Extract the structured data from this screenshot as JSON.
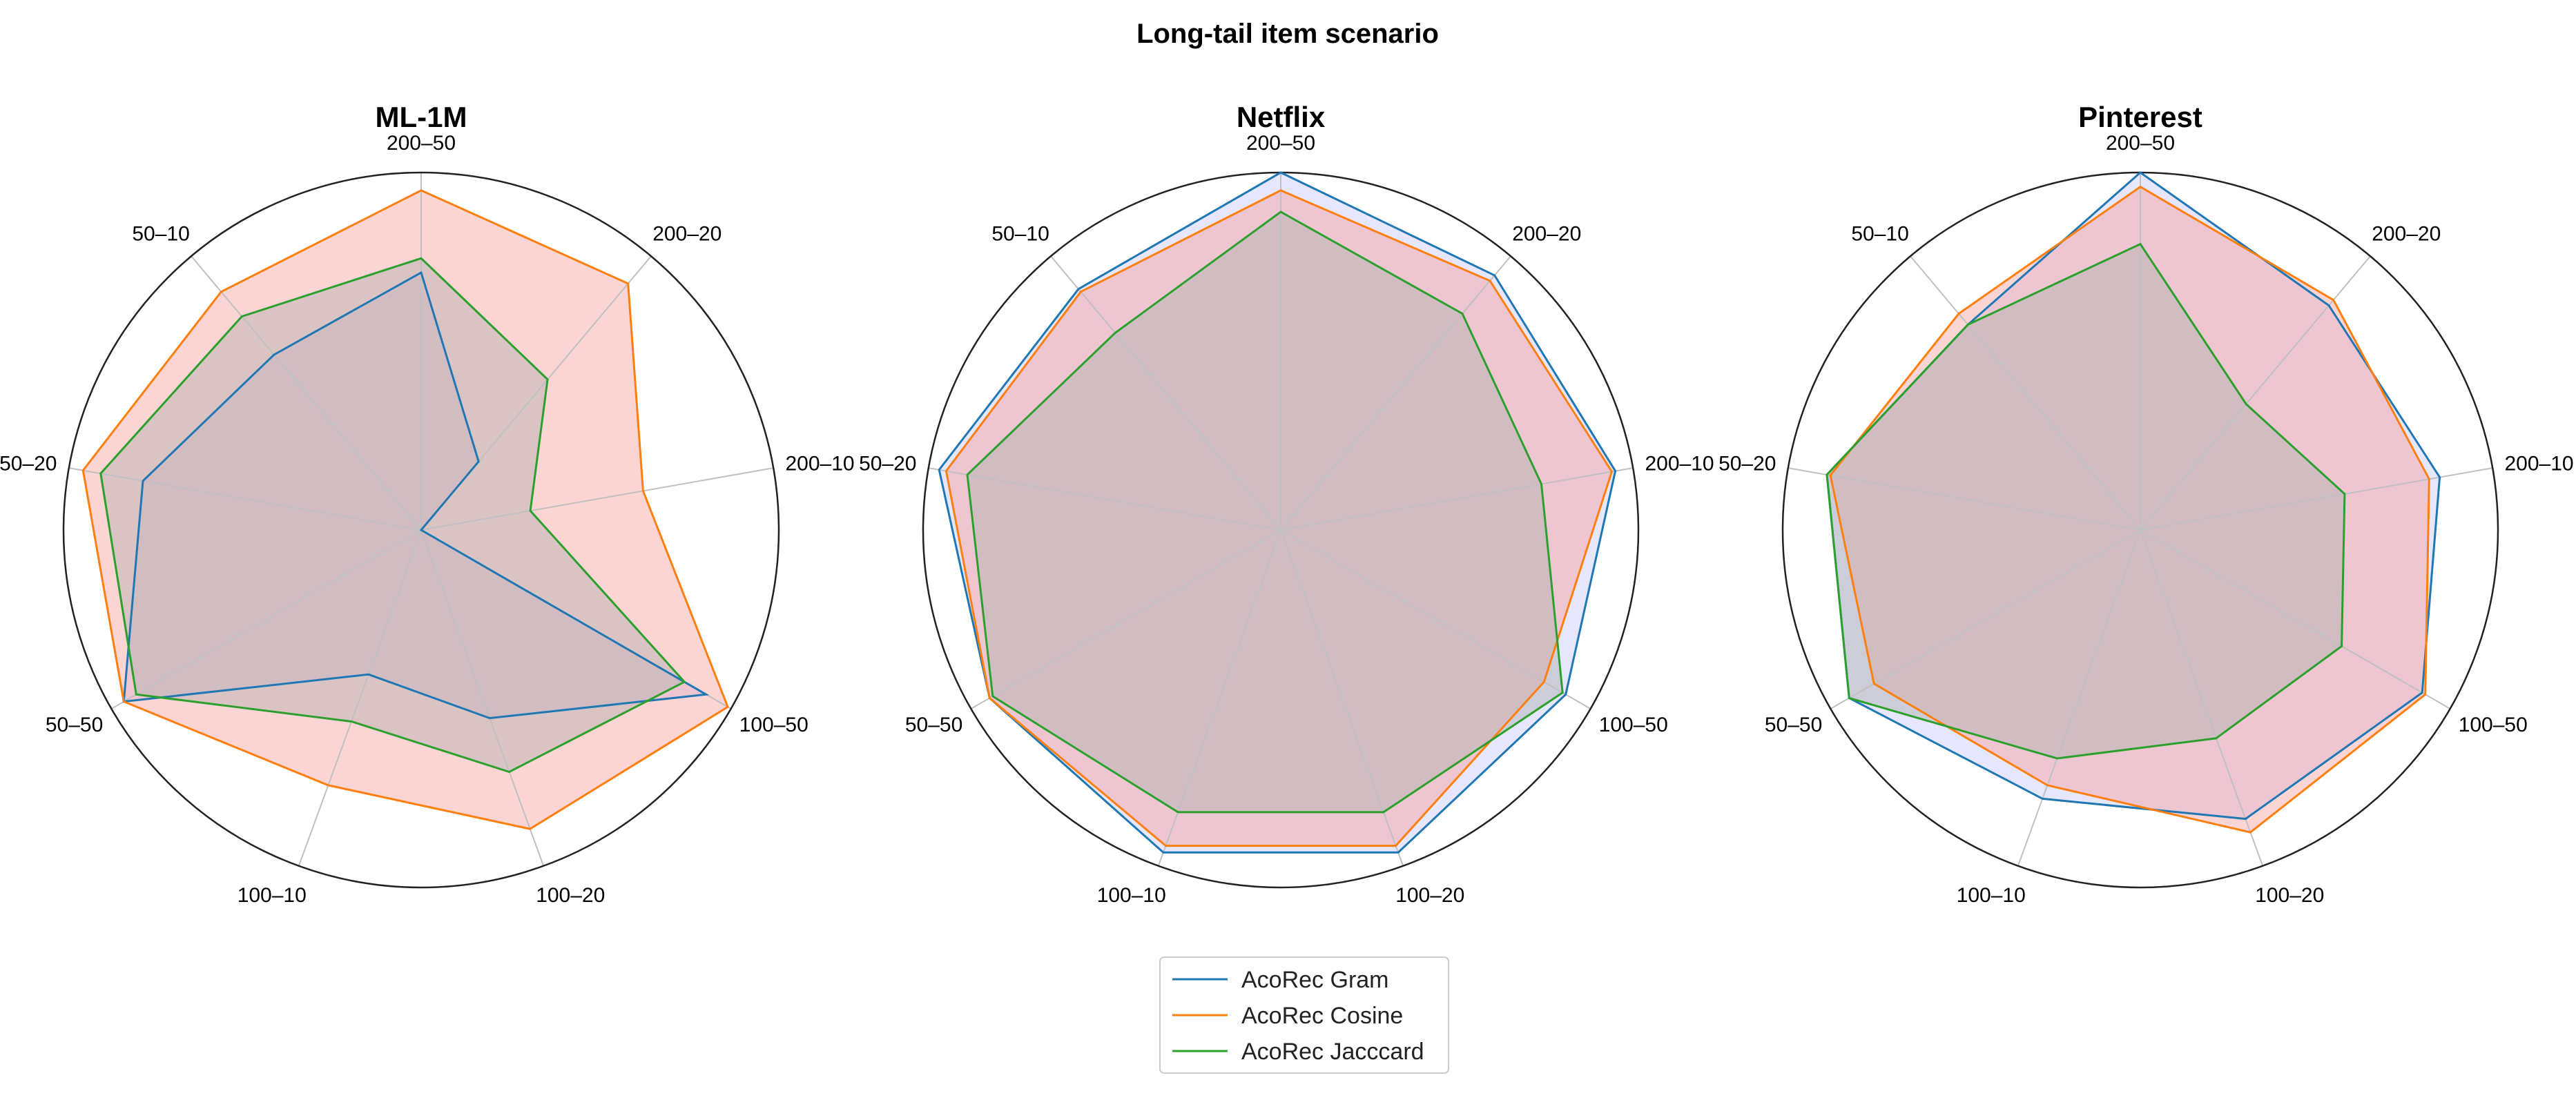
{
  "title": "Long-tail item scenario",
  "chart_data": [
    {
      "type": "radar",
      "title": "ML-1M",
      "categories": [
        "200–50",
        "200–20",
        "200–10",
        "100–50",
        "100–20",
        "100–10",
        "50–50",
        "50–20",
        "50–10"
      ],
      "rmax": 1.0,
      "series": [
        {
          "name": "AcoRec Gram",
          "values": [
            0.72,
            0.25,
            0.0,
            0.92,
            0.56,
            0.43,
            0.96,
            0.79,
            0.64
          ]
        },
        {
          "name": "AcoRec Cosine",
          "values": [
            0.95,
            0.9,
            0.63,
            0.99,
            0.89,
            0.76,
            0.96,
            0.96,
            0.87
          ]
        },
        {
          "name": "AcoRec Jacccard",
          "values": [
            0.76,
            0.55,
            0.31,
            0.85,
            0.72,
            0.57,
            0.92,
            0.91,
            0.78
          ]
        }
      ]
    },
    {
      "type": "radar",
      "title": "Netflix",
      "categories": [
        "200–50",
        "200–20",
        "200–10",
        "100–50",
        "100–20",
        "100–10",
        "50–50",
        "50–20",
        "50–10"
      ],
      "rmax": 1.0,
      "series": [
        {
          "name": "AcoRec Gram",
          "values": [
            1.0,
            0.93,
            0.95,
            0.92,
            0.96,
            0.96,
            0.94,
            0.97,
            0.88
          ]
        },
        {
          "name": "AcoRec Cosine",
          "values": [
            0.95,
            0.91,
            0.94,
            0.85,
            0.94,
            0.94,
            0.94,
            0.95,
            0.87
          ]
        },
        {
          "name": "AcoRec Jacccard",
          "values": [
            0.89,
            0.79,
            0.74,
            0.91,
            0.84,
            0.84,
            0.93,
            0.89,
            0.72
          ]
        }
      ]
    },
    {
      "type": "radar",
      "title": "Pinterest",
      "categories": [
        "200–50",
        "200–20",
        "200–10",
        "100–50",
        "100–20",
        "100–10",
        "50–50",
        "50–20",
        "50–10"
      ],
      "rmax": 1.0,
      "series": [
        {
          "name": "AcoRec Gram",
          "values": [
            1.0,
            0.82,
            0.85,
            0.91,
            0.86,
            0.8,
            0.94,
            0.89,
            0.75
          ]
        },
        {
          "name": "AcoRec Cosine",
          "values": [
            0.96,
            0.84,
            0.82,
            0.92,
            0.9,
            0.76,
            0.86,
            0.88,
            0.79
          ]
        },
        {
          "name": "AcoRec Jacccard",
          "values": [
            0.8,
            0.46,
            0.58,
            0.65,
            0.62,
            0.68,
            0.94,
            0.89,
            0.75
          ]
        }
      ]
    }
  ],
  "legend": {
    "items": [
      "AcoRec Gram",
      "AcoRec Cosine",
      "AcoRec Jacccard"
    ]
  },
  "colors": {
    "gram": "#1f77b4",
    "cosine": "#ff7f0e",
    "jaccard": "#2ca02c",
    "fill_gram": "#c8c8f8",
    "fill_cosine": "#f6a0a0",
    "fill_jaccard": "#b0b0b0",
    "grid": "#c0c0c0",
    "frame": "#222222"
  }
}
